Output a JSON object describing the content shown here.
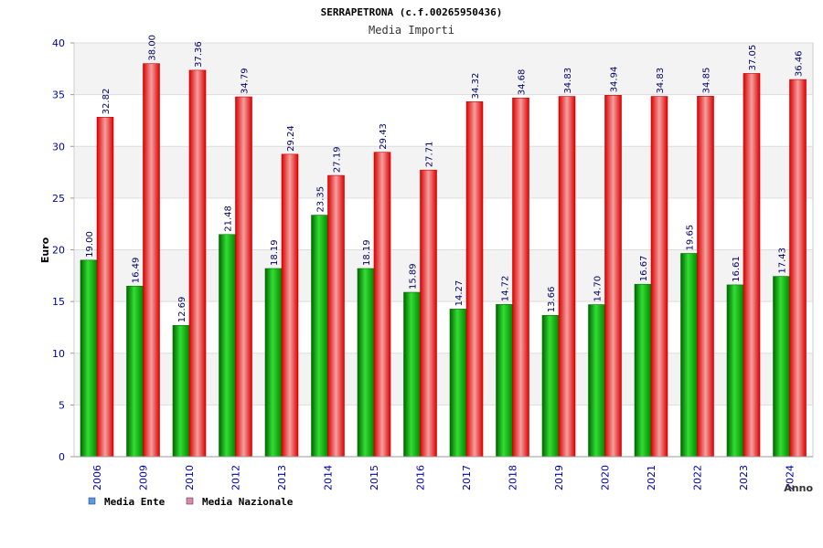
{
  "chart_data": {
    "type": "bar",
    "title": "SERRAPETRONA (c.f.00265950436)",
    "subtitle": "Media Importi",
    "xlabel": "Anno",
    "ylabel": "Euro",
    "ylim": [
      0,
      40
    ],
    "yticks": [
      "0",
      "5",
      "10",
      "15",
      "20",
      "25",
      "30",
      "35",
      "40"
    ],
    "grid": true,
    "legend_position": "bottom-left",
    "categories": [
      "2006",
      "2009",
      "2010",
      "2012",
      "2013",
      "2014",
      "2015",
      "2016",
      "2017",
      "2018",
      "2019",
      "2020",
      "2021",
      "2022",
      "2023",
      "2024"
    ],
    "series": [
      {
        "name": "Media Ente",
        "color": "#00b000",
        "legend_color": "#5599ee",
        "values": [
          19.0,
          16.49,
          12.69,
          21.48,
          18.19,
          23.35,
          18.19,
          15.89,
          14.27,
          14.72,
          13.66,
          14.7,
          16.67,
          19.65,
          16.61,
          17.43
        ],
        "labels": [
          "19.00",
          "16.49",
          "12.69",
          "21.48",
          "18.19",
          "23.35",
          "18.19",
          "15.89",
          "14.27",
          "14.72",
          "13.66",
          "14.70",
          "16.67",
          "19.65",
          "16.61",
          "17.43"
        ]
      },
      {
        "name": "Media Nazionale",
        "color": "#ee0000",
        "legend_color": "#dd88aa",
        "values": [
          32.82,
          38.0,
          37.36,
          34.79,
          29.24,
          27.19,
          29.43,
          27.71,
          34.32,
          34.68,
          34.83,
          34.94,
          34.83,
          34.85,
          37.05,
          36.46
        ],
        "labels": [
          "32.82",
          "38.00",
          "37.36",
          "34.79",
          "29.24",
          "27.19",
          "29.43",
          "27.71",
          "34.32",
          "34.68",
          "34.83",
          "34.94",
          "34.83",
          "34.85",
          "37.05",
          "36.46"
        ]
      }
    ]
  }
}
